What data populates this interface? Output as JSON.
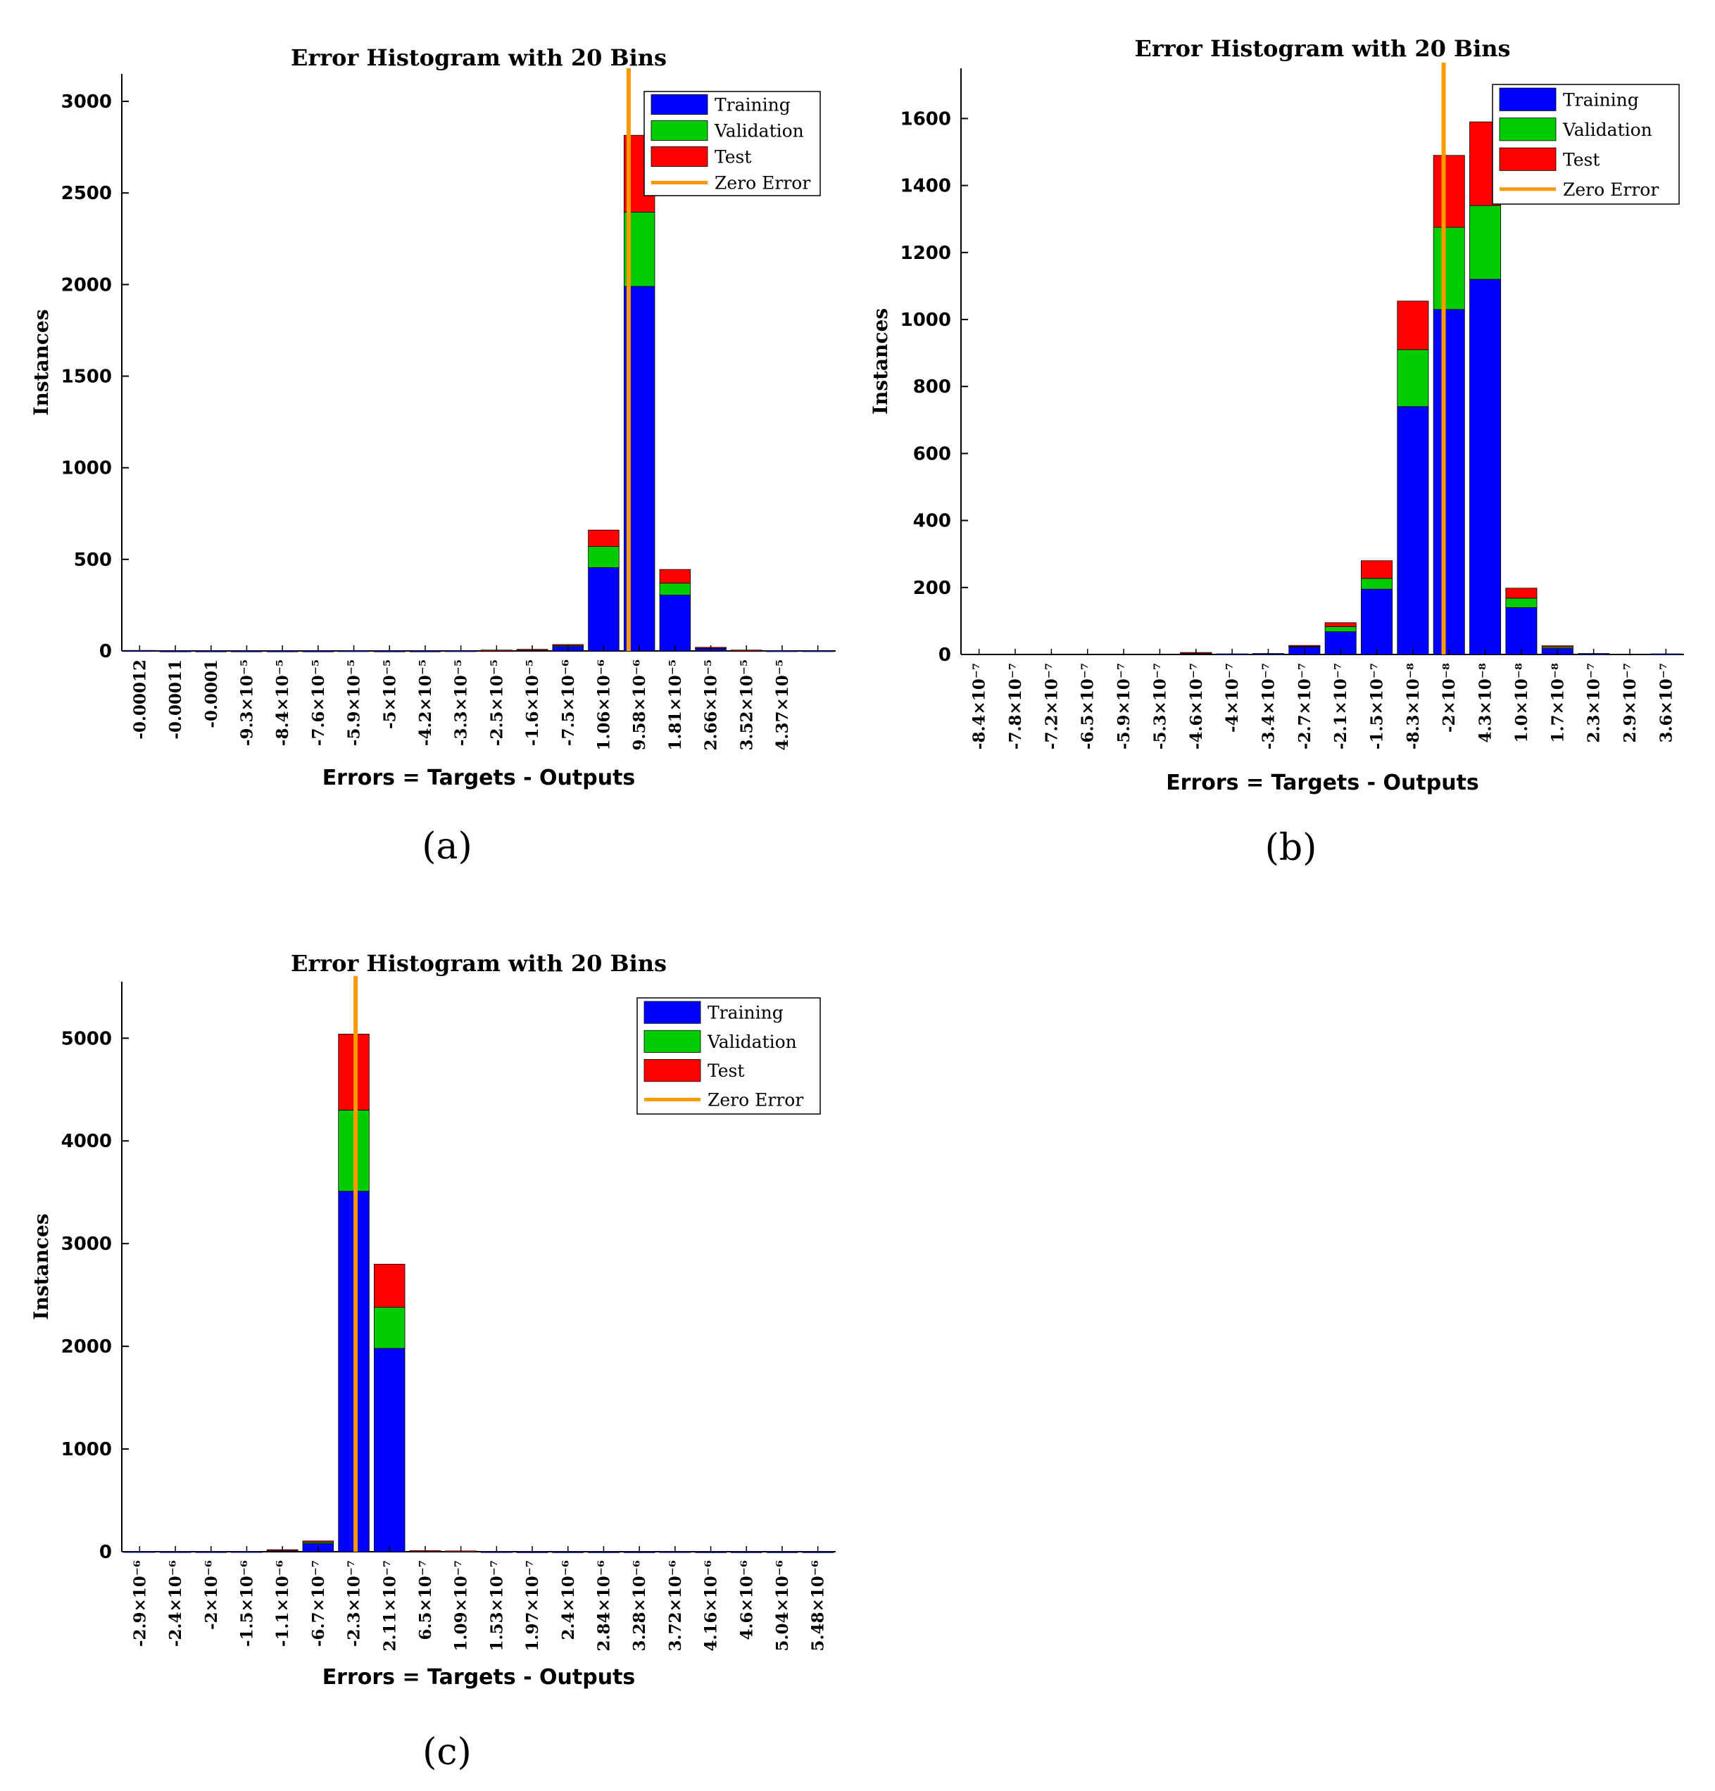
{
  "colors": {
    "training": "#0000ff",
    "validation": "#00cc00",
    "test": "#ff0000",
    "zero_error": "#ff9900"
  },
  "chart_data": [
    {
      "panel_label": "(a)",
      "type": "bar",
      "title": "Error Histogram with 20 Bins",
      "xlabel": "Errors = Targets - Outputs",
      "ylabel": "Instances",
      "ylim": [
        0,
        3150
      ],
      "yticks": [
        "0",
        "500",
        "1000",
        "1500",
        "2000",
        "2500",
        "3000"
      ],
      "ytick_values": [
        0,
        500,
        1000,
        1500,
        2000,
        2500,
        3000
      ],
      "legend": [
        "Training",
        "Validation",
        "Test",
        "Zero Error"
      ],
      "legend_position": "top-right",
      "categories": [
        "-0.00012",
        "-0.00011",
        "-0.0001",
        "-9.3×10⁻⁵",
        "-8.4×10⁻⁵",
        "-7.6×10⁻⁵",
        "-5.9×10⁻⁵",
        "-5×10⁻⁵",
        "-4.2×10⁻⁵",
        "-3.3×10⁻⁵",
        "-2.5×10⁻⁵",
        "-1.6×10⁻⁵",
        "-7.5×10⁻⁶",
        "1.06×10⁻⁶",
        "9.58×10⁻⁶",
        "1.81×10⁻⁵",
        "2.66×10⁻⁵",
        "3.52×10⁻⁵",
        "4.37×10⁻⁵",
        ""
      ],
      "zero_error_bin": 14.2,
      "series": [
        {
          "name": "Training",
          "values": [
            3,
            1,
            1,
            1,
            1,
            1,
            2,
            1,
            1,
            2,
            3,
            6,
            25,
            455,
            1990,
            305,
            15,
            3,
            2,
            2
          ]
        },
        {
          "name": "Validation",
          "values": [
            0,
            0,
            0,
            0,
            0,
            0,
            0,
            0,
            0,
            0,
            1,
            2,
            5,
            115,
            405,
            65,
            3,
            1,
            0,
            0
          ]
        },
        {
          "name": "Test",
          "values": [
            0,
            0,
            0,
            0,
            0,
            0,
            0,
            0,
            0,
            0,
            1,
            1,
            5,
            90,
            420,
            75,
            2,
            1,
            0,
            0
          ]
        }
      ]
    },
    {
      "panel_label": "(b)",
      "type": "bar",
      "title": "Error Histogram with 20 Bins",
      "xlabel": "Errors = Targets - Outputs",
      "ylabel": "Instances",
      "ylim": [
        0,
        1750
      ],
      "yticks": [
        "0",
        "200",
        "400",
        "600",
        "800",
        "1000",
        "1200",
        "1400",
        "1600"
      ],
      "ytick_values": [
        0,
        200,
        400,
        600,
        800,
        1000,
        1200,
        1400,
        1600
      ],
      "legend": [
        "Training",
        "Validation",
        "Test",
        "Zero Error"
      ],
      "legend_position": "top-right",
      "categories": [
        "-8.4×10⁻⁷",
        "-7.8×10⁻⁷",
        "-7.2×10⁻⁷",
        "-6.5×10⁻⁷",
        "-5.9×10⁻⁷",
        "-5.3×10⁻⁷",
        "-4.6×10⁻⁷",
        "-4×10⁻⁷",
        "-3.4×10⁻⁷",
        "-2.7×10⁻⁷",
        "-2.1×10⁻⁷",
        "-1.5×10⁻⁷",
        "-8.3×10⁻⁸",
        "-2×10⁻⁸",
        "4.3×10⁻⁸",
        "1.0×10⁻⁸",
        "1.7×10⁻⁸",
        "2.3×10⁻⁷",
        "2.9×10⁻⁷",
        "3.6×10⁻⁷"
      ],
      "zero_error_bin": 13.35,
      "series": [
        {
          "name": "Training",
          "values": [
            0,
            0,
            0,
            0,
            0,
            0,
            4,
            2,
            3,
            22,
            68,
            195,
            740,
            1030,
            1120,
            140,
            18,
            3,
            0,
            2
          ]
        },
        {
          "name": "Validation",
          "values": [
            0,
            0,
            0,
            0,
            0,
            0,
            1,
            0,
            0,
            3,
            15,
            32,
            170,
            245,
            220,
            28,
            4,
            0,
            0,
            0
          ]
        },
        {
          "name": "Test",
          "values": [
            0,
            0,
            0,
            0,
            0,
            0,
            1,
            0,
            0,
            2,
            12,
            53,
            145,
            215,
            250,
            30,
            4,
            0,
            0,
            0
          ]
        }
      ]
    },
    {
      "panel_label": "(c)",
      "type": "bar",
      "title": "Error Histogram with 20 Bins",
      "xlabel": "Errors = Targets - Outputs",
      "ylabel": "Instances",
      "ylim": [
        0,
        5550
      ],
      "yticks": [
        "0",
        "1000",
        "2000",
        "3000",
        "4000",
        "5000"
      ],
      "ytick_values": [
        0,
        1000,
        2000,
        3000,
        4000,
        5000
      ],
      "legend": [
        "Training",
        "Validation",
        "Test",
        "Zero Error"
      ],
      "legend_position": "top-right",
      "categories": [
        "-2.9×10⁻⁶",
        "-2.4×10⁻⁶",
        "-2×10⁻⁶",
        "-1.5×10⁻⁶",
        "-1.1×10⁻⁶",
        "-6.7×10⁻⁷",
        "-2.3×10⁻⁷",
        "2.11×10⁻⁷",
        "6.5×10⁻⁷",
        "1.09×10⁻⁷",
        "1.53×10⁻⁷",
        "1.97×10⁻⁷",
        "2.4×10⁻⁶",
        "2.84×10⁻⁶",
        "3.28×10⁻⁶",
        "3.72×10⁻⁶",
        "4.16×10⁻⁶",
        "4.6×10⁻⁶",
        "5.04×10⁻⁶",
        "5.48×10⁻⁶"
      ],
      "zero_error_bin": 6.55,
      "series": [
        {
          "name": "Training",
          "values": [
            3,
            2,
            2,
            3,
            15,
            80,
            3510,
            1980,
            8,
            6,
            2,
            1,
            1,
            1,
            1,
            2,
            1,
            1,
            1,
            1
          ]
        },
        {
          "name": "Validation",
          "values": [
            0,
            0,
            0,
            0,
            3,
            12,
            790,
            400,
            2,
            1,
            0,
            0,
            0,
            0,
            0,
            0,
            0,
            0,
            0,
            0
          ]
        },
        {
          "name": "Test",
          "values": [
            0,
            0,
            0,
            0,
            2,
            13,
            740,
            420,
            1,
            1,
            0,
            0,
            0,
            0,
            0,
            0,
            0,
            0,
            0,
            0
          ]
        }
      ]
    }
  ]
}
